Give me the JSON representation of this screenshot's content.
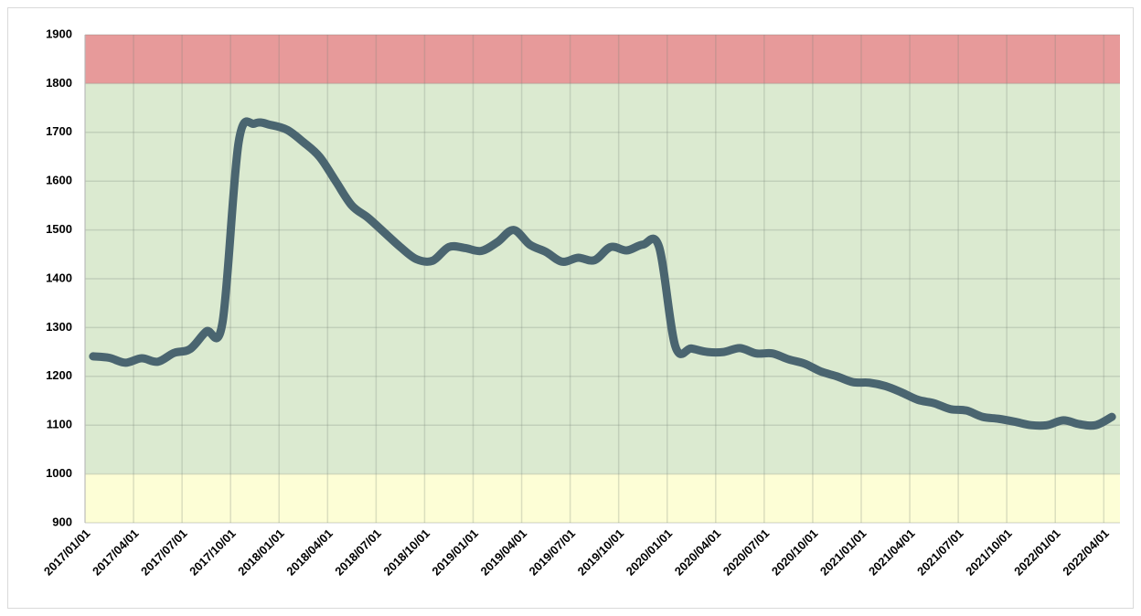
{
  "chart_data": {
    "type": "line",
    "categories": [
      "2017/01/01",
      null,
      null,
      "2017/04/01",
      null,
      null,
      "2017/07/01",
      null,
      null,
      "2017/10/01",
      null,
      null,
      "2018/01/01",
      null,
      null,
      "2018/04/01",
      null,
      null,
      "2018/07/01",
      null,
      null,
      "2018/10/01",
      null,
      null,
      "2019/01/01",
      null,
      null,
      "2019/04/01",
      null,
      null,
      "2019/07/01",
      null,
      null,
      "2019/10/01",
      null,
      null,
      "2020/01/01",
      null,
      null,
      "2020/04/01",
      null,
      null,
      "2020/07/01",
      null,
      null,
      "2020/10/01",
      null,
      null,
      "2021/01/01",
      null,
      null,
      "2021/04/01",
      null,
      null,
      "2021/07/01",
      null,
      null,
      "2021/10/01",
      null,
      null,
      "2022/01/01",
      null,
      null,
      "2022/04/01"
    ],
    "series": [
      {
        "color": "#4a6570",
        "values": [
          1241,
          1238,
          1228,
          1237,
          1230,
          1248,
          1256,
          1292,
          1310,
          1680,
          1718,
          1715,
          1705,
          1680,
          1650,
          1600,
          1550,
          1525,
          1495,
          1465,
          1440,
          1437,
          1465,
          1463,
          1457,
          1475,
          1500,
          1470,
          1455,
          1435,
          1443,
          1438,
          1465,
          1458,
          1470,
          1465,
          1262,
          1257,
          1250,
          1250,
          1258,
          1247,
          1247,
          1235,
          1226,
          1210,
          1200,
          1188,
          1187,
          1180,
          1167,
          1152,
          1145,
          1133,
          1130,
          1117,
          1113,
          1107,
          1100,
          1100,
          1110,
          1102,
          1100,
          1117
        ]
      }
    ],
    "bands": [
      {
        "from": 1800,
        "to": 1900,
        "color": "#e79a9a"
      },
      {
        "from": 1000,
        "to": 1800,
        "color": "#dbead0"
      },
      {
        "from": 900,
        "to": 1000,
        "color": "#fdfed6"
      }
    ],
    "ylim": [
      900,
      1900
    ],
    "yticks": [
      900,
      1000,
      1100,
      1200,
      1300,
      1400,
      1500,
      1600,
      1700,
      1800,
      1900
    ],
    "grid": true
  }
}
